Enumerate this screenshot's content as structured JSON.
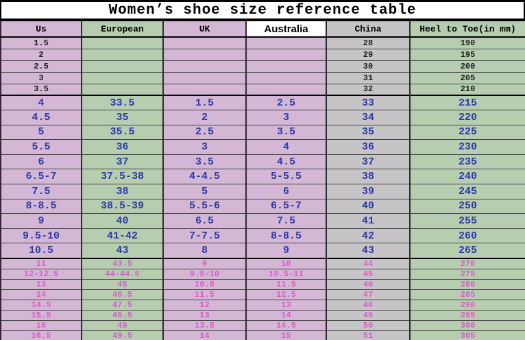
{
  "title": "Women’s shoe size reference table",
  "columns": [
    {
      "label": "Us",
      "header_bg": "pink",
      "body_bg": "pink"
    },
    {
      "label": "European",
      "header_bg": "green",
      "body_bg": "green"
    },
    {
      "label": "UK",
      "header_bg": "pink",
      "body_bg": "pink"
    },
    {
      "label": "Australia",
      "header_bg": "white",
      "body_bg": "pink"
    },
    {
      "label": "China",
      "header_bg": "gray",
      "body_bg": "gray"
    },
    {
      "label": "Heel to Toe(in mm)",
      "header_bg": "green",
      "body_bg": "green"
    }
  ],
  "colors": {
    "pink": "#d4b6d5",
    "green": "#b6cdb0",
    "gray": "#c6c4c6",
    "white": "#ffffff",
    "black_text": "#1c1c1c",
    "blue_text": "#2c3ba8",
    "magenta_text": "#d95ccb",
    "border": "#000000"
  },
  "sections": [
    {
      "name": "small-sizes",
      "text_color": "black_text",
      "style": "small",
      "rows": [
        [
          "1.5",
          "",
          "",
          "",
          "28",
          "190"
        ],
        [
          "2",
          "",
          "",
          "",
          "29",
          "195"
        ],
        [
          "2.5",
          "",
          "",
          "",
          "30",
          "200"
        ],
        [
          "3",
          "",
          "",
          "",
          "31",
          "205"
        ],
        [
          "3.5",
          "",
          "",
          "",
          "32",
          "210"
        ]
      ]
    },
    {
      "name": "standard-sizes",
      "text_color": "blue_text",
      "style": "medium",
      "rows": [
        [
          "4",
          "33.5",
          "1.5",
          "2.5",
          "33",
          "215"
        ],
        [
          "4.5",
          "35",
          "2",
          "3",
          "34",
          "220"
        ],
        [
          "5",
          "35.5",
          "2.5",
          "3.5",
          "35",
          "225"
        ],
        [
          "5.5",
          "36",
          "3",
          "4",
          "36",
          "230"
        ],
        [
          "6",
          "37",
          "3.5",
          "4.5",
          "37",
          "235"
        ],
        [
          "6.5-7",
          "37.5-38",
          "4-4.5",
          "5-5.5",
          "38",
          "240"
        ],
        [
          "7.5",
          "38",
          "5",
          "6",
          "39",
          "245"
        ],
        [
          "8-8.5",
          "38.5-39",
          "5.5-6",
          "6.5-7",
          "40",
          "250"
        ],
        [
          "9",
          "40",
          "6.5",
          "7.5",
          "41",
          "255"
        ],
        [
          "9.5-10",
          "41-42",
          "7-7.5",
          "8-8.5",
          "42",
          "260"
        ],
        [
          "10.5",
          "43",
          "8",
          "9",
          "43",
          "265"
        ]
      ]
    },
    {
      "name": "large-sizes",
      "text_color": "magenta_text",
      "style": "bottom",
      "rows": [
        [
          "11",
          "43.5",
          "9",
          "10",
          "44",
          "270"
        ],
        [
          "12-12.5",
          "44-44.5",
          "9.5-10",
          "10.5-11",
          "45",
          "275"
        ],
        [
          "13",
          "45",
          "10.5",
          "11.5",
          "46",
          "280"
        ],
        [
          "14",
          "46.5",
          "11.5",
          "12.5",
          "47",
          "285"
        ],
        [
          "14.5",
          "47.5",
          "12",
          "13",
          "48",
          "290"
        ],
        [
          "15.5",
          "48.5",
          "13",
          "14",
          "49",
          "295"
        ],
        [
          "16",
          "49",
          "13.5",
          "14.5",
          "50",
          "300"
        ],
        [
          "16.5",
          "49.5",
          "14",
          "15",
          "51",
          "305"
        ]
      ]
    }
  ]
}
